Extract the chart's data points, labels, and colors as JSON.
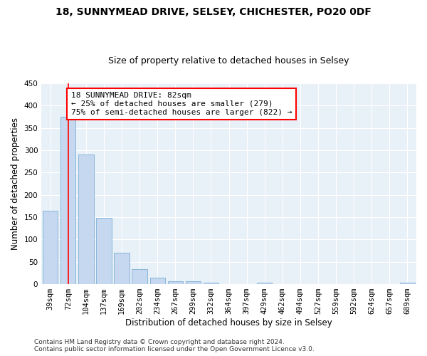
{
  "title": "18, SUNNYMEAD DRIVE, SELSEY, CHICHESTER, PO20 0DF",
  "subtitle": "Size of property relative to detached houses in Selsey",
  "xlabel": "Distribution of detached houses by size in Selsey",
  "ylabel": "Number of detached properties",
  "categories": [
    "39sqm",
    "72sqm",
    "104sqm",
    "137sqm",
    "169sqm",
    "202sqm",
    "234sqm",
    "267sqm",
    "299sqm",
    "332sqm",
    "364sqm",
    "397sqm",
    "429sqm",
    "462sqm",
    "494sqm",
    "527sqm",
    "559sqm",
    "592sqm",
    "624sqm",
    "657sqm",
    "689sqm"
  ],
  "values": [
    165,
    375,
    290,
    148,
    70,
    33,
    14,
    7,
    6,
    4,
    0,
    0,
    4,
    0,
    0,
    0,
    0,
    0,
    0,
    0,
    4
  ],
  "bar_color": "#c5d8f0",
  "bar_edge_color": "#7aafd4",
  "vline_x": 1.0,
  "vline_color": "red",
  "annotation_text": "18 SUNNYMEAD DRIVE: 82sqm\n← 25% of detached houses are smaller (279)\n75% of semi-detached houses are larger (822) →",
  "annotation_box_color": "white",
  "annotation_box_edge": "red",
  "ylim": [
    0,
    450
  ],
  "yticks": [
    0,
    50,
    100,
    150,
    200,
    250,
    300,
    350,
    400,
    450
  ],
  "background_color": "#e8f0f8",
  "footer": "Contains HM Land Registry data © Crown copyright and database right 2024.\nContains public sector information licensed under the Open Government Licence v3.0.",
  "title_fontsize": 10,
  "subtitle_fontsize": 9,
  "axis_label_fontsize": 8.5,
  "tick_fontsize": 7.5,
  "annotation_fontsize": 8,
  "footer_fontsize": 6.5
}
